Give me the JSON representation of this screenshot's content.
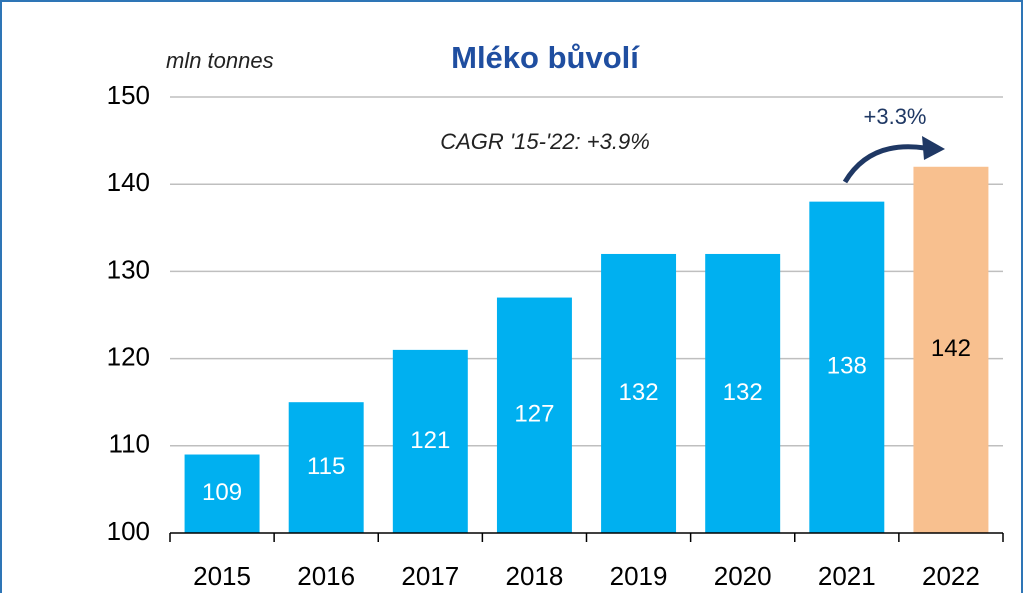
{
  "chart_data": {
    "type": "bar",
    "title": "Mléko bůvolí",
    "unit_label": "mln tonnes",
    "annotations": [
      "CAGR '15-'22: +3.9%",
      "+3.3%"
    ],
    "categories": [
      "2015",
      "2016",
      "2017",
      "2018",
      "2019",
      "2020",
      "2021",
      "2022"
    ],
    "values": [
      109,
      115,
      121,
      127,
      132,
      132,
      138,
      142
    ],
    "colors": [
      "#00b0f0",
      "#00b0f0",
      "#00b0f0",
      "#00b0f0",
      "#00b0f0",
      "#00b0f0",
      "#00b0f0",
      "#f8c08f"
    ],
    "label_colors": [
      "#ffffff",
      "#ffffff",
      "#ffffff",
      "#ffffff",
      "#ffffff",
      "#ffffff",
      "#ffffff",
      "#000000"
    ],
    "ylim": [
      100,
      150
    ],
    "yticks": [
      100,
      110,
      120,
      130,
      140,
      150
    ],
    "grid": true
  }
}
